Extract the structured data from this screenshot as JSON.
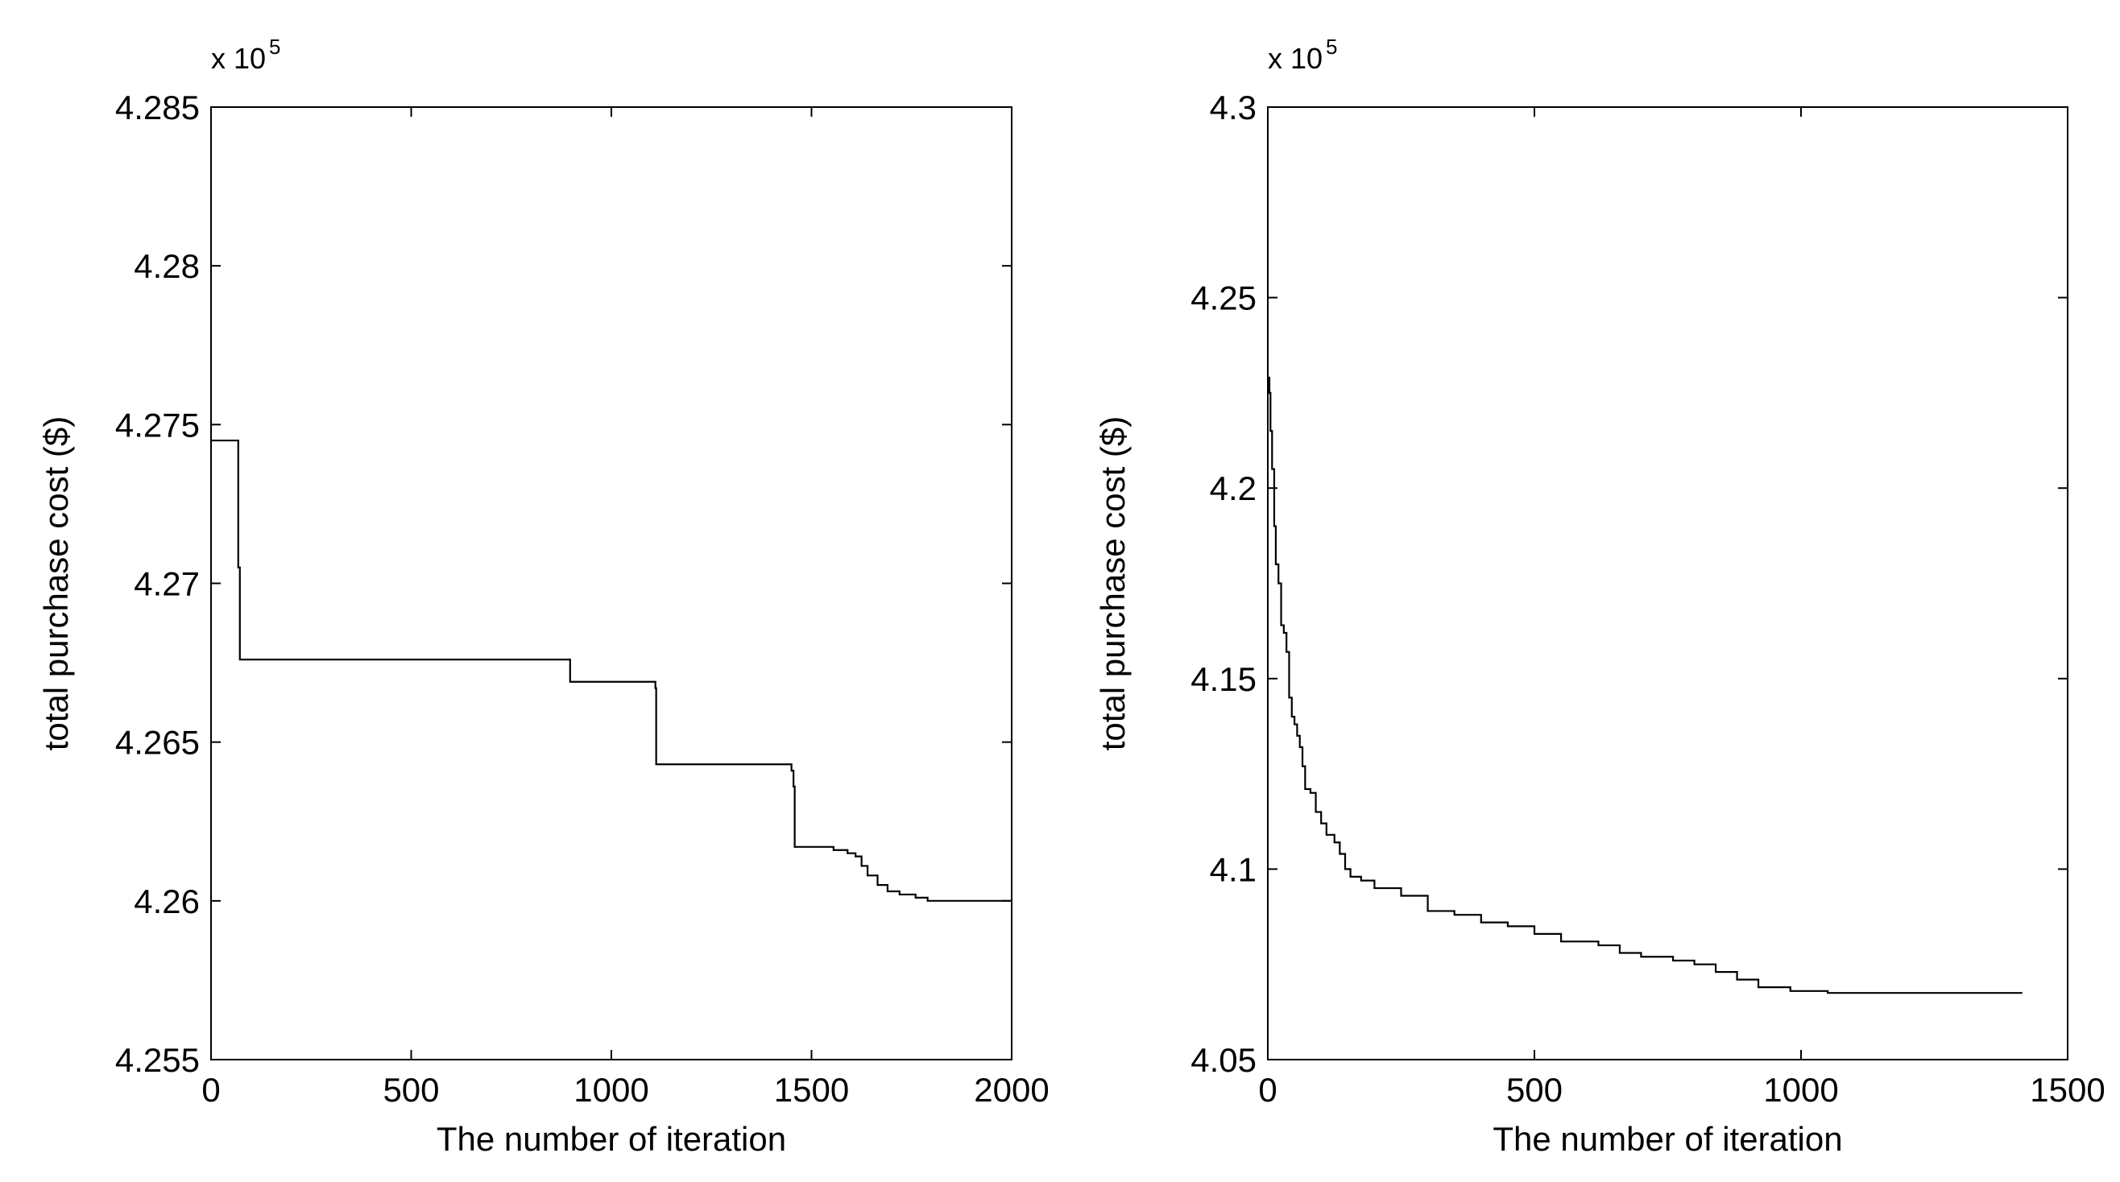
{
  "chart_data": [
    {
      "type": "line",
      "xlabel": "The number of iteration",
      "ylabel": "total purchase cost ($)",
      "y_multiplier_base": "x 10",
      "y_multiplier_exponent": "5",
      "xlim": [
        0,
        2000
      ],
      "ylim": [
        4.255,
        4.285
      ],
      "x_ticks": [
        0,
        500,
        1000,
        1500,
        2000
      ],
      "x_tick_labels": [
        "0",
        "500",
        "1000",
        "1500",
        "2000"
      ],
      "y_ticks": [
        4.255,
        4.26,
        4.265,
        4.27,
        4.275,
        4.28,
        4.285
      ],
      "y_tick_labels": [
        "4.255",
        "4.26",
        "4.265",
        "4.27",
        "4.275",
        "4.28",
        "4.285"
      ],
      "grid": false,
      "legend": "none",
      "line_color": "#000000",
      "series": [
        {
          "step": true,
          "points": [
            [
              0,
              4.2745
            ],
            [
              65,
              4.2745
            ],
            [
              68,
              4.2705
            ],
            [
              72,
              4.2676
            ],
            [
              895,
              4.2676
            ],
            [
              897,
              4.2669
            ],
            [
              1100,
              4.2669
            ],
            [
              1110,
              4.2667
            ],
            [
              1112,
              4.2643
            ],
            [
              1445,
              4.2643
            ],
            [
              1450,
              4.2641
            ],
            [
              1455,
              4.2636
            ],
            [
              1458,
              4.2617
            ],
            [
              1545,
              4.2617
            ],
            [
              1555,
              4.2616
            ],
            [
              1590,
              4.2615
            ],
            [
              1610,
              4.2614
            ],
            [
              1625,
              4.2611
            ],
            [
              1640,
              4.2608
            ],
            [
              1665,
              4.2605
            ],
            [
              1690,
              4.2603
            ],
            [
              1720,
              4.2602
            ],
            [
              1760,
              4.2601
            ],
            [
              1790,
              4.26
            ],
            [
              2000,
              4.26
            ]
          ]
        }
      ]
    },
    {
      "type": "line",
      "xlabel": "The number of iteration",
      "ylabel": "total purchase cost ($)",
      "y_multiplier_base": "x 10",
      "y_multiplier_exponent": "5",
      "xlim": [
        0,
        1500
      ],
      "ylim": [
        4.05,
        4.3
      ],
      "x_ticks": [
        0,
        500,
        1000,
        1500
      ],
      "x_tick_labels": [
        "0",
        "500",
        "1000",
        "1500"
      ],
      "y_ticks": [
        4.05,
        4.1,
        4.15,
        4.2,
        4.25,
        4.3
      ],
      "y_tick_labels": [
        "4.05",
        "4.1",
        "4.15",
        "4.2",
        "4.25",
        "4.3"
      ],
      "grid": false,
      "legend": "none",
      "line_color": "#000000",
      "series": [
        {
          "step": true,
          "points": [
            [
              0,
              4.229
            ],
            [
              3,
              4.225
            ],
            [
              5,
              4.215
            ],
            [
              8,
              4.205
            ],
            [
              12,
              4.19
            ],
            [
              15,
              4.18
            ],
            [
              20,
              4.175
            ],
            [
              25,
              4.164
            ],
            [
              30,
              4.162
            ],
            [
              35,
              4.157
            ],
            [
              40,
              4.145
            ],
            [
              45,
              4.14
            ],
            [
              50,
              4.138
            ],
            [
              55,
              4.135
            ],
            [
              60,
              4.132
            ],
            [
              65,
              4.127
            ],
            [
              70,
              4.121
            ],
            [
              80,
              4.12
            ],
            [
              90,
              4.115
            ],
            [
              100,
              4.112
            ],
            [
              110,
              4.109
            ],
            [
              125,
              4.107
            ],
            [
              135,
              4.104
            ],
            [
              145,
              4.1
            ],
            [
              155,
              4.098
            ],
            [
              175,
              4.097
            ],
            [
              200,
              4.095
            ],
            [
              250,
              4.093
            ],
            [
              300,
              4.089
            ],
            [
              350,
              4.088
            ],
            [
              400,
              4.086
            ],
            [
              450,
              4.085
            ],
            [
              500,
              4.083
            ],
            [
              550,
              4.081
            ],
            [
              620,
              4.08
            ],
            [
              660,
              4.078
            ],
            [
              700,
              4.077
            ],
            [
              760,
              4.076
            ],
            [
              800,
              4.075
            ],
            [
              840,
              4.073
            ],
            [
              880,
              4.071
            ],
            [
              920,
              4.069
            ],
            [
              980,
              4.068
            ],
            [
              1050,
              4.0675
            ],
            [
              1415,
              4.0675
            ]
          ]
        }
      ]
    }
  ]
}
